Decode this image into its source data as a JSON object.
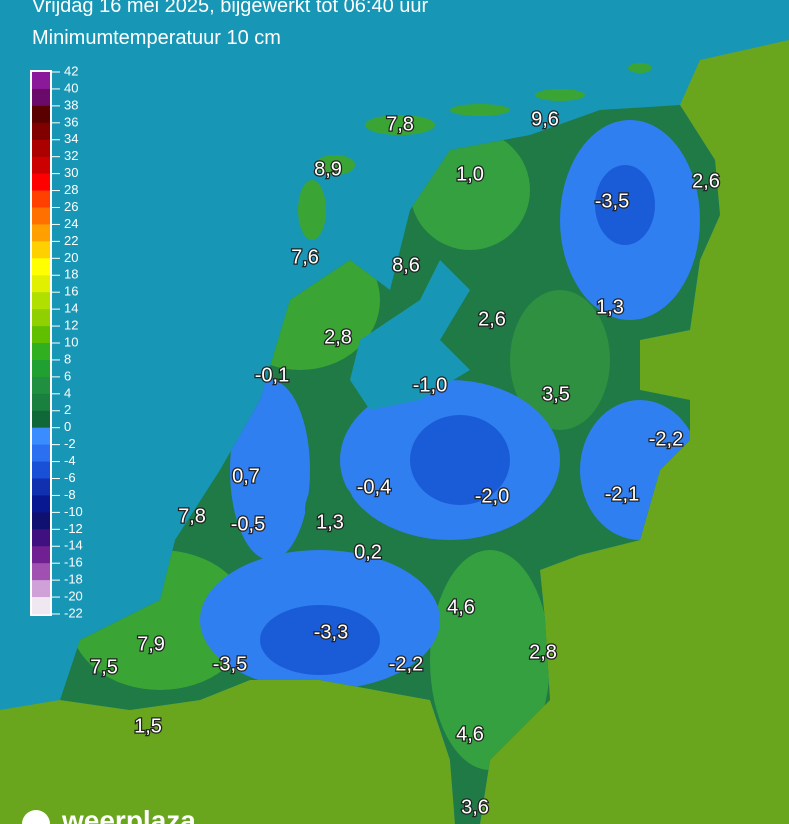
{
  "header": {
    "line1": "Vrijdag 16 mei 2025, bijgewerkt tot 06:40 uur",
    "line2": "Minimumtemperatuur 10 cm"
  },
  "legend": {
    "labels": [
      "42",
      "40",
      "38",
      "36",
      "34",
      "32",
      "30",
      "28",
      "26",
      "24",
      "22",
      "20",
      "18",
      "16",
      "14",
      "12",
      "10",
      "8",
      "6",
      "4",
      "2",
      "0",
      "-2",
      "-4",
      "-6",
      "-8",
      "-10",
      "-12",
      "-14",
      "-16",
      "-18",
      "-20",
      "-22"
    ],
    "colors": [
      "#8a1a9a",
      "#6a0a6a",
      "#5a0000",
      "#800000",
      "#aa0000",
      "#cc0000",
      "#ff0000",
      "#ff4000",
      "#ff7000",
      "#ffa000",
      "#ffd000",
      "#ffff00",
      "#e0f000",
      "#b0e000",
      "#90d000",
      "#60c000",
      "#30b020",
      "#20a030",
      "#209040",
      "#1a8040",
      "#106838",
      "#3a8cff",
      "#2a70f0",
      "#1a50d8",
      "#1030b0",
      "#081890",
      "#101070",
      "#401080",
      "#702090",
      "#a050b0",
      "#d0a0d8",
      "#f0e8f0"
    ]
  },
  "stations": [
    "7,8",
    "9,6",
    "8,9",
    "1,0",
    "-3,5",
    "2,6",
    "7,6",
    "8,6",
    "2,6",
    "1,3",
    "2,8",
    "-0,1",
    "-1,0",
    "3,5",
    "-2,2",
    "0,7",
    "-0,4",
    "-2,0",
    "-2,1",
    "7,8",
    "-0,5",
    "1,3",
    "0,2",
    "4,6",
    "7,9",
    "-3,3",
    "2,8",
    "7,5",
    "-3,5",
    "-2,2",
    "1,5",
    "4,6",
    "3,6"
  ],
  "logo": "weerplaza"
}
